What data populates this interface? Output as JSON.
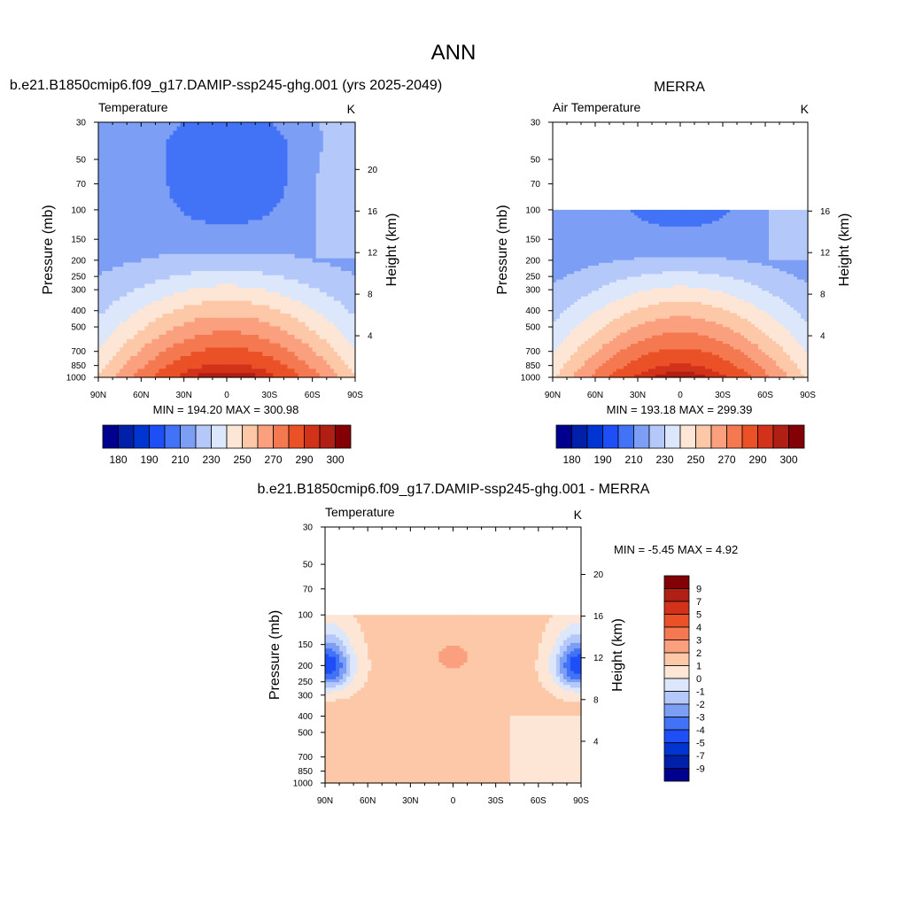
{
  "figure": {
    "title": "ANN"
  },
  "panels": [
    {
      "id": "model",
      "header": "b.e21.B1850cmip6.f09_g17.DAMIP-ssp245-ghg.001 (yrs 2025-2049)",
      "var_label": "Temperature",
      "units": "K",
      "minmax": "MIN = 194.20  MAX = 300.98"
    },
    {
      "id": "obs",
      "header": "MERRA",
      "var_label": "Air Temperature",
      "units": "K",
      "minmax": "MIN = 193.18  MAX = 299.39"
    },
    {
      "id": "diff",
      "header": "b.e21.B1850cmip6.f09_g17.DAMIP-ssp245-ghg.001 - MERRA",
      "var_label": "Temperature",
      "units": "K",
      "minmax": "MIN =  -5.45  MAX =   4.92"
    }
  ],
  "chart_data": [
    {
      "type": "heatmap",
      "title": "Temperature",
      "xlabel": "",
      "ylabel": "Pressure (mb)",
      "y2label": "Height (km)",
      "x_ticks": [
        "90N",
        "60N",
        "30N",
        "0",
        "30S",
        "60S",
        "90S"
      ],
      "x_values": [
        90,
        60,
        30,
        0,
        -30,
        -60,
        -90
      ],
      "y_ticks": [
        30,
        50,
        70,
        100,
        150,
        200,
        250,
        300,
        400,
        500,
        700,
        850,
        1000
      ],
      "y2_ticks": [
        4,
        8,
        12,
        16,
        20
      ],
      "ylim": [
        30,
        1000
      ],
      "y_scale": "log",
      "data_top_pressure": 30,
      "min": 194.2,
      "max": 300.98,
      "colorbar": {
        "orientation": "horizontal",
        "labels": [
          "180",
          "190",
          "210",
          "230",
          "250",
          "270",
          "290",
          "300"
        ]
      }
    },
    {
      "type": "heatmap",
      "title": "Air Temperature",
      "xlabel": "",
      "ylabel": "Pressure (mb)",
      "y2label": "Height (km)",
      "x_ticks": [
        "90N",
        "60N",
        "30N",
        "0",
        "30S",
        "60S",
        "90S"
      ],
      "x_values": [
        90,
        60,
        30,
        0,
        -30,
        -60,
        -90
      ],
      "y_ticks": [
        30,
        50,
        70,
        100,
        150,
        200,
        250,
        300,
        400,
        500,
        700,
        850,
        1000
      ],
      "y2_ticks": [
        4,
        8,
        12,
        16
      ],
      "ylim": [
        30,
        1000
      ],
      "y_scale": "log",
      "data_top_pressure": 100,
      "min": 193.18,
      "max": 299.39,
      "colorbar": {
        "orientation": "horizontal",
        "labels": [
          "180",
          "190",
          "210",
          "230",
          "250",
          "270",
          "290",
          "300"
        ]
      }
    },
    {
      "type": "heatmap",
      "title": "Temperature",
      "xlabel": "",
      "ylabel": "Pressure (mb)",
      "y2label": "Height (km)",
      "x_ticks": [
        "90N",
        "60N",
        "30N",
        "0",
        "30S",
        "60S",
        "90S"
      ],
      "x_values": [
        90,
        60,
        30,
        0,
        -30,
        -60,
        -90
      ],
      "y_ticks": [
        30,
        50,
        70,
        100,
        150,
        200,
        250,
        300,
        400,
        500,
        700,
        850,
        1000
      ],
      "y2_ticks": [
        4,
        8,
        12,
        16,
        20
      ],
      "ylim": [
        30,
        1000
      ],
      "y_scale": "log",
      "data_top_pressure": 100,
      "min": -5.45,
      "max": 4.92,
      "colorbar": {
        "orientation": "vertical",
        "labels": [
          "9",
          "7",
          "5",
          "4",
          "3",
          "2",
          "1",
          "0",
          "-1",
          "-2",
          "-3",
          "-4",
          "-5",
          "-7",
          "-9"
        ]
      }
    }
  ],
  "colors": {
    "abs_levels": [
      "#00008f",
      "#0020aa",
      "#0035d1",
      "#1e4ef5",
      "#4273f7",
      "#7d9ef5",
      "#b4c9fa",
      "#dce7fc",
      "#fde6d5",
      "#fcc8a8",
      "#faa07e",
      "#f47850",
      "#ea5127",
      "#d2321a",
      "#b01f13",
      "#820006"
    ],
    "diff_levels": [
      "#820006",
      "#b01f13",
      "#d2321a",
      "#ea5127",
      "#f47850",
      "#faa07e",
      "#fcc8a8",
      "#fde6d5",
      "#dce7fc",
      "#b4c9fa",
      "#7d9ef5",
      "#4273f7",
      "#1e4ef5",
      "#0035d1",
      "#0020aa",
      "#00008f"
    ]
  }
}
